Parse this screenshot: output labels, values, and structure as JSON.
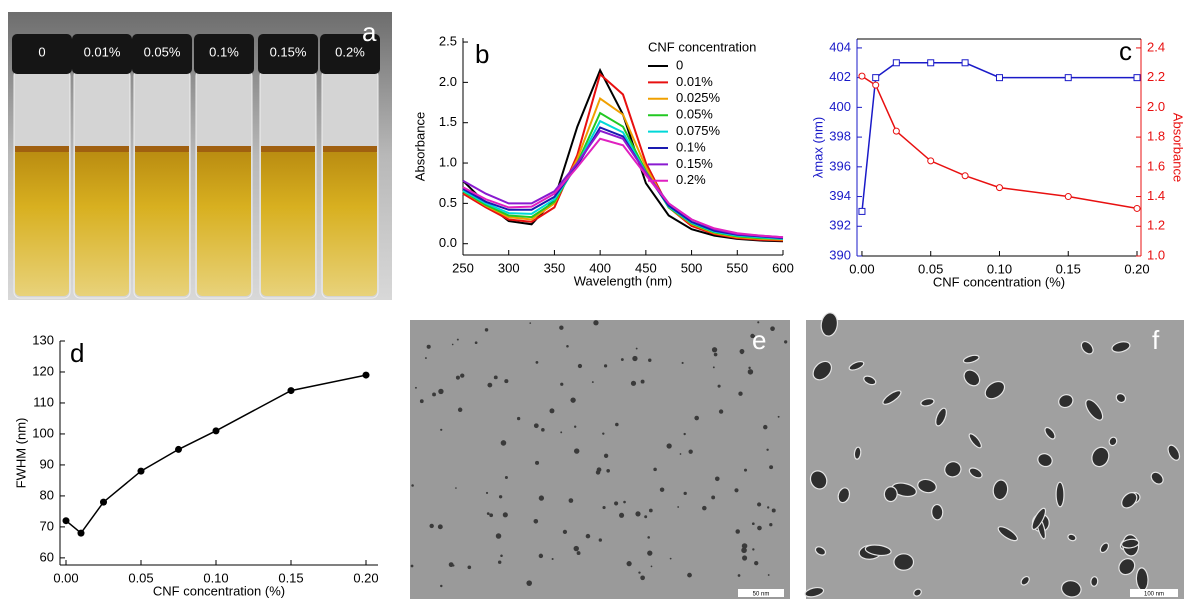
{
  "panels": {
    "a": {
      "label": "a",
      "vial_labels": [
        "0",
        "0.01%",
        "0.05%",
        "0.1%",
        "0.15%",
        "0.2%"
      ]
    },
    "e": {
      "label": "e",
      "scale_bar": "50 nm"
    },
    "f": {
      "label": "f",
      "scale_bar": "100 nm"
    }
  },
  "chart_data": [
    {
      "type": "line",
      "label": "b",
      "legend_title": "CNF concentration",
      "x_label": "Wavelength (nm)",
      "y_label": "Absorbance",
      "x": [
        250,
        275,
        300,
        325,
        350,
        375,
        400,
        425,
        450,
        475,
        500,
        525,
        550,
        575,
        600
      ],
      "series": [
        {
          "name": "0",
          "color": "#000000",
          "values": [
            0.78,
            0.5,
            0.28,
            0.24,
            0.55,
            1.45,
            2.15,
            1.6,
            0.75,
            0.35,
            0.18,
            0.1,
            0.06,
            0.04,
            0.03
          ]
        },
        {
          "name": "0.01%",
          "color": "#e81010",
          "values": [
            0.62,
            0.45,
            0.3,
            0.27,
            0.45,
            1.1,
            2.1,
            1.85,
            1.0,
            0.45,
            0.22,
            0.12,
            0.07,
            0.05,
            0.04
          ]
        },
        {
          "name": "0.025%",
          "color": "#f0a000",
          "values": [
            0.65,
            0.47,
            0.33,
            0.3,
            0.5,
            1.05,
            1.8,
            1.6,
            0.95,
            0.45,
            0.24,
            0.13,
            0.08,
            0.06,
            0.05
          ]
        },
        {
          "name": "0.05%",
          "color": "#22c822",
          "values": [
            0.65,
            0.48,
            0.35,
            0.33,
            0.52,
            1.0,
            1.62,
            1.45,
            0.9,
            0.45,
            0.25,
            0.14,
            0.09,
            0.07,
            0.06
          ]
        },
        {
          "name": "0.075%",
          "color": "#00d8d8",
          "values": [
            0.66,
            0.5,
            0.38,
            0.37,
            0.55,
            0.98,
            1.52,
            1.38,
            0.88,
            0.46,
            0.26,
            0.15,
            0.1,
            0.08,
            0.06
          ]
        },
        {
          "name": "0.1%",
          "color": "#1a1ab0",
          "values": [
            0.68,
            0.52,
            0.42,
            0.42,
            0.58,
            0.97,
            1.44,
            1.33,
            0.87,
            0.47,
            0.27,
            0.16,
            0.11,
            0.09,
            0.07
          ]
        },
        {
          "name": "0.15%",
          "color": "#8a1ad0",
          "values": [
            0.78,
            0.62,
            0.5,
            0.5,
            0.65,
            1.0,
            1.4,
            1.3,
            0.88,
            0.5,
            0.3,
            0.18,
            0.12,
            0.1,
            0.08
          ]
        },
        {
          "name": "0.2%",
          "color": "#e020c0",
          "values": [
            0.7,
            0.55,
            0.45,
            0.46,
            0.62,
            0.95,
            1.3,
            1.22,
            0.85,
            0.5,
            0.3,
            0.19,
            0.13,
            0.1,
            0.08
          ]
        }
      ],
      "xlim": [
        250,
        600
      ],
      "xticks": [
        250,
        300,
        350,
        400,
        450,
        500,
        550,
        600
      ],
      "ylim": [
        -0.14,
        2.55
      ],
      "yticks": [
        {
          "value": 0,
          "label": "0.0"
        },
        {
          "value": 0.5,
          "label": "0.5"
        },
        {
          "value": 1,
          "label": "1.0"
        },
        {
          "value": 1.5,
          "label": "1.5"
        },
        {
          "value": 2,
          "label": "2.0"
        },
        {
          "value": 2.5,
          "label": "2.5"
        }
      ]
    },
    {
      "type": "line",
      "label": "c",
      "x_label": "CNF concentration (%)",
      "y_label": "λmax (nm)",
      "y2_label": "Absorbance",
      "x": [
        0,
        0.01,
        0.025,
        0.05,
        0.075,
        0.1,
        0.15,
        0.2
      ],
      "series": [
        {
          "color": "#1a1ac8",
          "marker": "square",
          "values": [
            393,
            402,
            403,
            403,
            403,
            402,
            402,
            402
          ]
        },
        {
          "color": "#e81010",
          "marker": "circle",
          "axis": "y2",
          "values": [
            2.21,
            2.15,
            1.84,
            1.64,
            1.54,
            1.46,
            1.4,
            1.32
          ]
        }
      ],
      "xlim": [
        -0.0036,
        0.2029
      ],
      "xticks": [
        {
          "value": 0,
          "label": "0.00"
        },
        {
          "value": 0.05,
          "label": "0.05"
        },
        {
          "value": 0.1,
          "label": "0.10"
        },
        {
          "value": 0.15,
          "label": "0.15"
        },
        {
          "value": 0.2,
          "label": "0.20"
        }
      ],
      "ylim": [
        390,
        404.6
      ],
      "yticks": [
        390,
        392,
        394,
        396,
        398,
        400,
        402,
        404
      ],
      "y2lim": [
        1.0,
        2.46
      ],
      "y2ticks": [
        {
          "value": 1,
          "label": "1.0"
        },
        {
          "value": 1.2,
          "label": "1.2"
        },
        {
          "value": 1.4,
          "label": "1.4"
        },
        {
          "value": 1.6,
          "label": "1.6"
        },
        {
          "value": 1.8,
          "label": "1.8"
        },
        {
          "value": 2,
          "label": "2.0"
        },
        {
          "value": 2.2,
          "label": "2.2"
        },
        {
          "value": 2.4,
          "label": "2.4"
        }
      ]
    },
    {
      "type": "line",
      "label": "d",
      "x_label": "CNF concentration (%)",
      "y_label": "FWHM (nm)",
      "x": [
        0,
        0.01,
        0.025,
        0.05,
        0.075,
        0.1,
        0.15,
        0.2
      ],
      "series": [
        {
          "color": "#000000",
          "marker": "dot",
          "values": [
            72,
            68,
            78,
            88,
            95,
            101,
            114,
            119
          ]
        }
      ],
      "xlim": [
        -0.004,
        0.208
      ],
      "xticks": [
        {
          "value": 0,
          "label": "0.00"
        },
        {
          "value": 0.05,
          "label": "0.05"
        },
        {
          "value": 0.1,
          "label": "0.10"
        },
        {
          "value": 0.15,
          "label": "0.15"
        },
        {
          "value": 0.2,
          "label": "0.20"
        }
      ],
      "ylim": [
        57.7,
        130
      ],
      "yticks": [
        60,
        70,
        80,
        90,
        100,
        110,
        120,
        130
      ]
    }
  ]
}
